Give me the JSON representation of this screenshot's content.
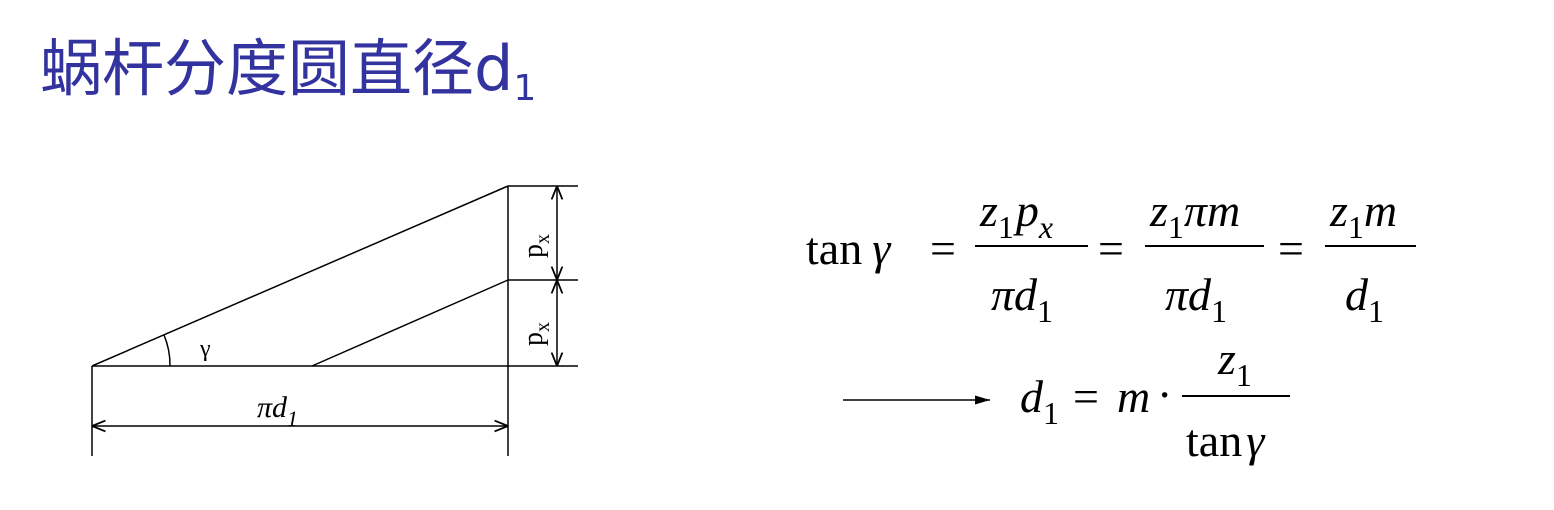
{
  "title": {
    "text": "蜗杆分度圆直径d",
    "subscript": "1"
  },
  "colors": {
    "title": "#3333a0",
    "line": "#000000"
  },
  "diagram": {
    "angle_label": "γ",
    "base_label_main": "πd",
    "base_label_sub": "1",
    "pitch_label_main": "p",
    "pitch_label_sub": "x"
  },
  "formula1": {
    "lhs_fn": "tan",
    "lhs_var": "γ",
    "f1_num_z": "z",
    "f1_num_z_sub": "1",
    "f1_num_p": "p",
    "f1_num_p_sub": "x",
    "f1_den_pi": "π",
    "f1_den_d": "d",
    "f1_den_d_sub": "1",
    "f2_num_z": "z",
    "f2_num_z_sub": "1",
    "f2_num_rest": "πm",
    "f2_den_pi": "π",
    "f2_den_d": "d",
    "f2_den_d_sub": "1",
    "f3_num_z": "z",
    "f3_num_z_sub": "1",
    "f3_num_m": "m",
    "f3_den_d": "d",
    "f3_den_d_sub": "1",
    "eq": "="
  },
  "formula2": {
    "lhs_d": "d",
    "lhs_sub": "1",
    "eq": "=",
    "m": "m",
    "dot": "·",
    "num_z": "z",
    "num_sub": "1",
    "den_fn": "tan",
    "den_var": "γ"
  }
}
